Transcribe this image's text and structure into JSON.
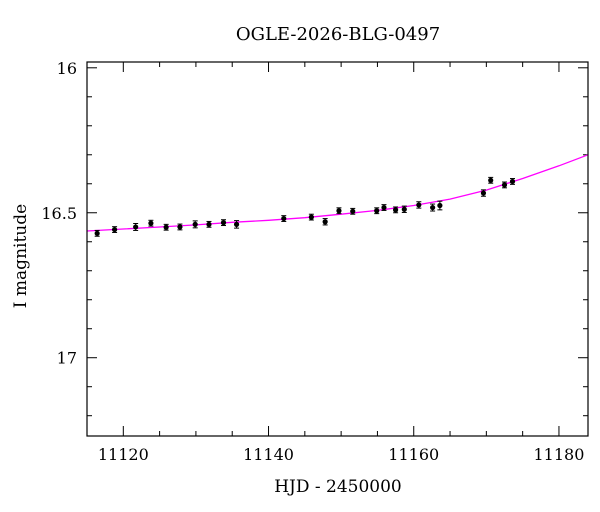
{
  "chart_data": {
    "type": "scatter",
    "title": "OGLE-2026-BLG-0497",
    "xlabel": "HJD - 2450000",
    "ylabel": "I magnitude",
    "xlim": [
      11115,
      11184
    ],
    "ylim": [
      17.27,
      15.98
    ],
    "y_inverted": true,
    "grid": false,
    "xticks": [
      11120,
      11140,
      11160,
      11180
    ],
    "yticks": [
      16,
      16.5,
      17
    ],
    "ytick_labels": [
      "16",
      "16.5",
      "17"
    ],
    "series": [
      {
        "kind": "points",
        "color": "#000000",
        "x": [
          11116.4,
          11118.8,
          11121.7,
          11123.8,
          11125.9,
          11127.8,
          11129.9,
          11131.8,
          11133.8,
          11135.6,
          11142.1,
          11145.9,
          11147.8,
          11149.7,
          11151.6,
          11154.9,
          11155.9,
          11157.5,
          11158.7,
          11160.7,
          11162.6,
          11163.6,
          11169.6,
          11170.6,
          11172.5,
          11173.6
        ],
        "y": [
          16.571,
          16.558,
          16.549,
          16.536,
          16.55,
          16.549,
          16.54,
          16.54,
          16.534,
          16.54,
          16.52,
          16.515,
          16.531,
          16.493,
          16.495,
          16.493,
          16.482,
          16.49,
          16.488,
          16.473,
          16.482,
          16.475,
          16.432,
          16.388,
          16.404,
          16.392
        ],
        "err": [
          0.01,
          0.01,
          0.012,
          0.01,
          0.01,
          0.01,
          0.012,
          0.01,
          0.01,
          0.013,
          0.01,
          0.01,
          0.011,
          0.01,
          0.01,
          0.01,
          0.01,
          0.01,
          0.011,
          0.011,
          0.012,
          0.015,
          0.011,
          0.01,
          0.01,
          0.01
        ]
      },
      {
        "kind": "model",
        "color": "#ff00ff",
        "x": [
          11115,
          11120,
          11125,
          11130,
          11135,
          11140,
          11145,
          11150,
          11155,
          11160,
          11165,
          11170,
          11175,
          11180,
          11184
        ],
        "y": [
          16.563,
          16.556,
          16.549,
          16.542,
          16.533,
          16.526,
          16.517,
          16.505,
          16.492,
          16.475,
          16.453,
          16.422,
          16.382,
          16.338,
          16.3
        ]
      }
    ]
  }
}
